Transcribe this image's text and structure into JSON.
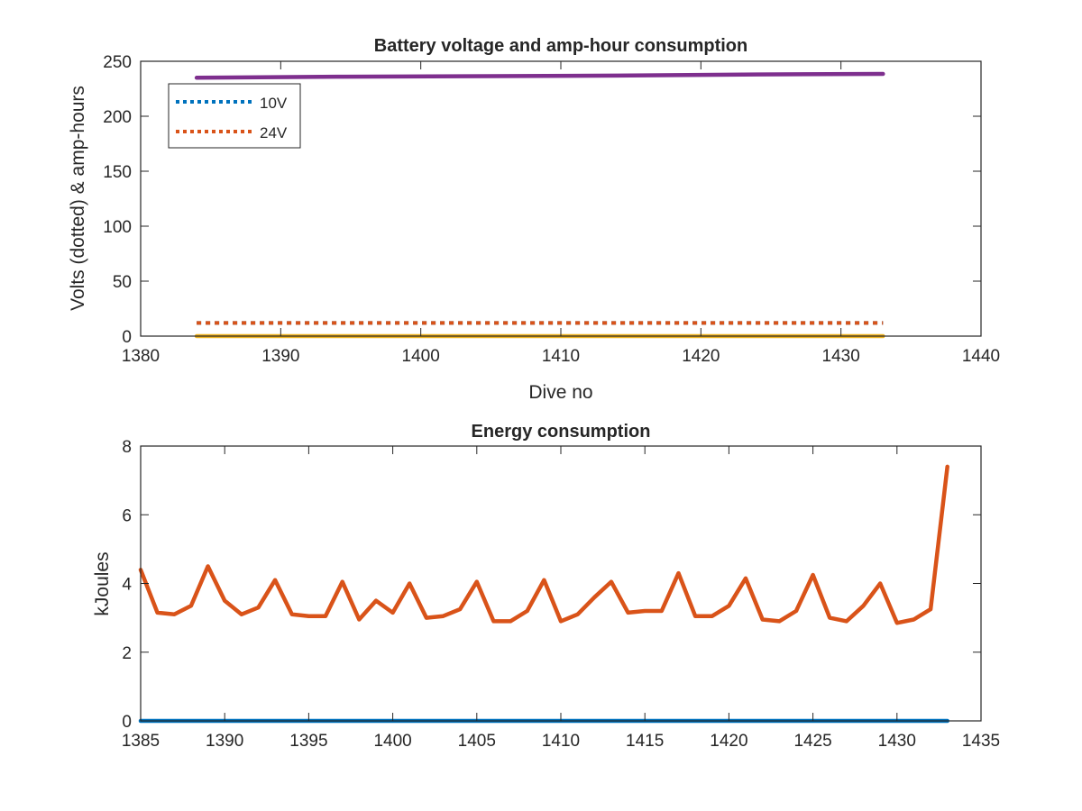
{
  "chart_data": [
    {
      "type": "line",
      "title": "Battery voltage and amp-hour consumption",
      "xlabel": "Dive no",
      "ylabel": "Volts (dotted) & amp-hours",
      "xlim": [
        1380,
        1440
      ],
      "ylim": [
        0,
        250
      ],
      "xticks": [
        "1380",
        "1390",
        "1400",
        "1410",
        "1420",
        "1430",
        "1440"
      ],
      "yticks": [
        "0",
        "50",
        "100",
        "150",
        "200",
        "250"
      ],
      "grid": false,
      "legend_position": "top-left",
      "series": [
        {
          "name": "10V",
          "style": "dotted",
          "color": "#0072BD",
          "x": [
            1384,
            1433
          ],
          "values": [
            12,
            12
          ]
        },
        {
          "name": "24V",
          "style": "dotted",
          "color": "#D95319",
          "x": [
            1384,
            1433
          ],
          "values": [
            12,
            12
          ]
        },
        {
          "style": "solid",
          "color": "#EDB120",
          "x": [
            1384,
            1433
          ],
          "values": [
            0,
            0
          ]
        },
        {
          "style": "solid",
          "color": "#7E2F8E",
          "x": [
            1384,
            1394,
            1405,
            1414,
            1424,
            1433
          ],
          "values": [
            235,
            236,
            236.5,
            237,
            238,
            238.5
          ]
        }
      ]
    },
    {
      "type": "line",
      "title": "Energy consumption",
      "xlabel": "",
      "ylabel": "kJoules",
      "xlim": [
        1385,
        1435
      ],
      "ylim": [
        0,
        8
      ],
      "xticks": [
        "1385",
        "1390",
        "1395",
        "1400",
        "1405",
        "1410",
        "1415",
        "1420",
        "1425",
        "1430",
        "1435"
      ],
      "yticks": [
        "0",
        "2",
        "4",
        "6",
        "8"
      ],
      "grid": false,
      "series": [
        {
          "style": "solid",
          "color": "#D95319",
          "x": [
            1385,
            1386,
            1387,
            1388,
            1389,
            1390,
            1391,
            1392,
            1393,
            1394,
            1395,
            1396,
            1397,
            1398,
            1399,
            1400,
            1401,
            1402,
            1403,
            1404,
            1405,
            1406,
            1407,
            1408,
            1409,
            1410,
            1411,
            1412,
            1413,
            1414,
            1415,
            1416,
            1417,
            1418,
            1419,
            1420,
            1421,
            1422,
            1423,
            1424,
            1425,
            1426,
            1427,
            1428,
            1429,
            1430,
            1431,
            1432,
            1433
          ],
          "values": [
            4.4,
            3.15,
            3.1,
            3.35,
            4.5,
            3.5,
            3.1,
            3.3,
            4.1,
            3.1,
            3.05,
            3.05,
            4.05,
            2.95,
            3.5,
            3.15,
            4.0,
            3.0,
            3.05,
            3.25,
            4.05,
            2.9,
            2.9,
            3.2,
            4.1,
            2.9,
            3.1,
            3.6,
            4.05,
            3.15,
            3.2,
            3.2,
            4.3,
            3.05,
            3.05,
            3.35,
            4.15,
            2.95,
            2.9,
            3.2,
            4.25,
            3.0,
            2.9,
            3.35,
            4.0,
            2.85,
            2.95,
            3.25,
            7.4
          ]
        },
        {
          "style": "solid",
          "color": "#0072BD",
          "x": [
            1385,
            1433
          ],
          "values": [
            0,
            0
          ]
        }
      ]
    }
  ]
}
